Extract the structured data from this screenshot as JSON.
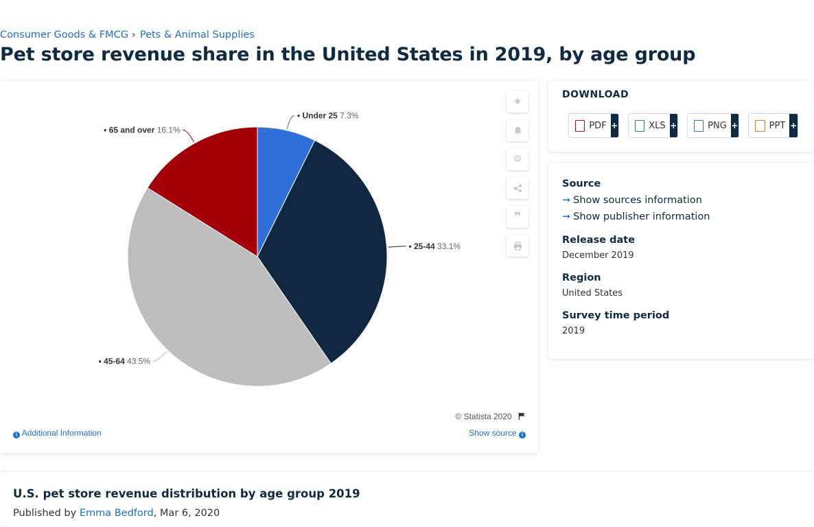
{
  "breadcrumb": {
    "items": [
      "Consumer Goods & FMCG",
      "Pets & Animal Supplies"
    ],
    "separator": "›"
  },
  "page_title": "Pet store revenue share in the United States in 2019, by age group",
  "chart_data": {
    "type": "pie",
    "slices": [
      {
        "name": "Under 25",
        "value": 7.3,
        "label": "7.3%",
        "color": "#2f6fd8"
      },
      {
        "name": "25-44",
        "value": 33.1,
        "label": "33.1%",
        "color": "#0f2740"
      },
      {
        "name": "45-64",
        "value": 43.5,
        "label": "43.5%",
        "color": "#bdbdbd"
      },
      {
        "name": "65 and over",
        "value": 16.1,
        "label": "16.1%",
        "color": "#a3000a"
      }
    ],
    "title": "",
    "legend": "none"
  },
  "chart_panel": {
    "copyright": "© Statista 2020",
    "additional_info": "Additional Information",
    "show_source": "Show source",
    "tools": [
      "star-icon",
      "bell-icon",
      "gear-icon",
      "share-icon",
      "quote-icon",
      "print-icon"
    ]
  },
  "download": {
    "title": "DOWNLOAD",
    "formats": [
      {
        "label": "PDF",
        "plus": "+",
        "color": "#d0021b"
      },
      {
        "label": "XLS",
        "plus": "+",
        "color": "#2e8b3a"
      },
      {
        "label": "PNG",
        "plus": "+",
        "color": "#2f6fd8"
      },
      {
        "label": "PPT",
        "plus": "+",
        "color": "#e8731a"
      }
    ]
  },
  "meta": {
    "source_heading": "Source",
    "show_sources": "Show sources information",
    "show_publisher": "Show publisher information",
    "release_heading": "Release date",
    "release_value": "December 2019",
    "region_heading": "Region",
    "region_value": "United States",
    "survey_heading": "Survey time period",
    "survey_value": "2019"
  },
  "bottom": {
    "title": "U.S. pet store revenue distribution by age group 2019",
    "published_prefix": "Published by",
    "author": "Emma Bedford",
    "date": ", Mar 6, 2020"
  }
}
